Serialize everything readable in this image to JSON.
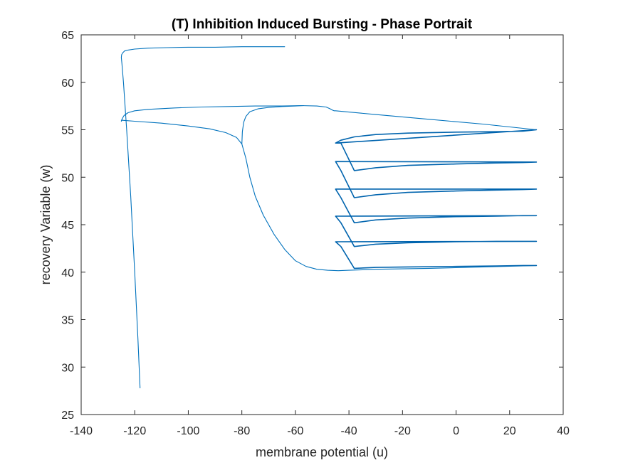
{
  "chart_data": {
    "type": "line",
    "title": "(T) Inhibition Induced Bursting - Phase Portrait",
    "xlabel": "membrane potential (u)",
    "ylabel": "recovery Variable (w)",
    "xlim": [
      -140,
      40
    ],
    "ylim": [
      25,
      65
    ],
    "xticks": [
      -140,
      -120,
      -100,
      -80,
      -60,
      -40,
      -20,
      0,
      20,
      40
    ],
    "yticks": [
      25,
      30,
      35,
      40,
      45,
      50,
      55,
      60,
      65
    ],
    "xtick_labels": [
      "-140",
      "-120",
      "-100",
      "-80",
      "-60",
      "-40",
      "-20",
      "0",
      "20",
      "40"
    ],
    "ytick_labels": [
      "25",
      "30",
      "35",
      "40",
      "45",
      "50",
      "55",
      "60",
      "65"
    ],
    "grid": false,
    "box": true,
    "series": [
      {
        "color": "#0072BD",
        "x": [
          -118.0,
          -118.8,
          -120.0,
          -121.5,
          -123.0,
          -124.2,
          -124.8,
          -125.0,
          -124.9,
          -124.5,
          -123.8,
          -122.5,
          -120.0,
          -115.0,
          -108.0,
          -100.0,
          -90.0,
          -80.0,
          -70.0,
          -64.0
        ],
        "y": [
          27.8,
          33.0,
          40.0,
          48.0,
          55.0,
          60.0,
          62.0,
          62.6,
          62.9,
          63.1,
          63.3,
          63.4,
          63.5,
          63.6,
          63.65,
          63.7,
          63.7,
          63.75,
          63.75,
          63.75
        ]
      },
      {
        "color": "#0072BD",
        "x": [
          -125.0,
          -124.6,
          -124.0,
          -122.5,
          -120.0,
          -115.0,
          -105.0,
          -95.0,
          -85.0,
          -75.0,
          -65.0,
          -58.0,
          -52.0,
          -48.5,
          -47.0,
          -46.0,
          -45.5,
          -45.0,
          -30.0,
          -10.0,
          10.0,
          30.0
        ],
        "y": [
          55.9,
          56.2,
          56.5,
          56.8,
          57.0,
          57.15,
          57.3,
          57.4,
          57.45,
          57.5,
          57.5,
          57.55,
          57.5,
          57.4,
          57.2,
          57.05,
          57.0,
          57.0,
          56.6,
          56.1,
          55.6,
          55.0
        ]
      },
      {
        "color": "#0072BD",
        "x": [
          -125.0,
          -120.0,
          -110.0,
          -100.0,
          -92.0,
          -86.0,
          -82.0,
          -80.0,
          -78.5,
          -77.0,
          -75.0,
          -72.0,
          -68.0,
          -64.0,
          -60.0,
          -56.0,
          -52.0,
          -48.0,
          -44.0,
          -40.0,
          -30.0,
          -10.0,
          10.0,
          30.0
        ],
        "y": [
          56.0,
          55.9,
          55.7,
          55.4,
          55.1,
          54.7,
          54.2,
          53.5,
          52.0,
          50.0,
          48.0,
          46.0,
          44.0,
          42.4,
          41.2,
          40.6,
          40.3,
          40.2,
          40.15,
          40.2,
          40.3,
          40.4,
          40.55,
          40.7
        ]
      },
      {
        "color": "#0072BD",
        "x": [
          -80.0,
          -79.8,
          -79.3,
          -78.5,
          -77.0,
          -74.0,
          -70.0,
          -65.0,
          -60.0,
          -57.0
        ],
        "y": [
          53.5,
          54.8,
          55.8,
          56.4,
          56.9,
          57.2,
          57.35,
          57.45,
          57.5,
          57.55
        ]
      },
      {
        "color": "#0064AE",
        "x": [
          30.0,
          -45.0,
          -43.0,
          -38.0,
          -30.0,
          -18.0,
          0.0,
          15.0,
          25.0,
          30.0,
          -45.0,
          -43.0,
          -38.0,
          -30.0,
          -18.0,
          0.0,
          15.0,
          25.0,
          30.0,
          -45.0,
          -43.0,
          -38.0,
          -30.0,
          -18.0,
          0.0,
          15.0,
          25.0,
          30.0,
          -45.0,
          -43.0,
          -38.0,
          -30.0,
          -18.0,
          0.0,
          15.0,
          25.0,
          30.0,
          -45.0,
          -43.0,
          -38.0,
          -30.0,
          -18.0,
          0.0,
          15.0,
          25.0,
          30.0,
          -45.0,
          -43.0,
          -38.0,
          -30.0,
          -18.0,
          0.0,
          15.0,
          25.0,
          30.0
        ],
        "y": [
          55.0,
          53.6,
          53.9,
          54.25,
          54.5,
          54.65,
          54.75,
          54.8,
          54.85,
          55.0,
          53.6,
          53.6,
          50.7,
          51.0,
          51.25,
          51.4,
          51.5,
          51.55,
          51.6,
          51.65,
          50.7,
          47.85,
          48.15,
          48.4,
          48.55,
          48.65,
          48.7,
          48.75,
          48.75,
          47.85,
          45.2,
          45.5,
          45.7,
          45.85,
          45.9,
          45.95,
          45.95,
          45.9,
          45.2,
          42.7,
          42.95,
          43.1,
          43.2,
          43.25,
          43.25,
          43.25,
          43.2,
          42.7,
          40.4,
          40.5,
          40.55,
          40.6,
          40.65,
          40.7,
          40.7
        ]
      }
    ]
  }
}
